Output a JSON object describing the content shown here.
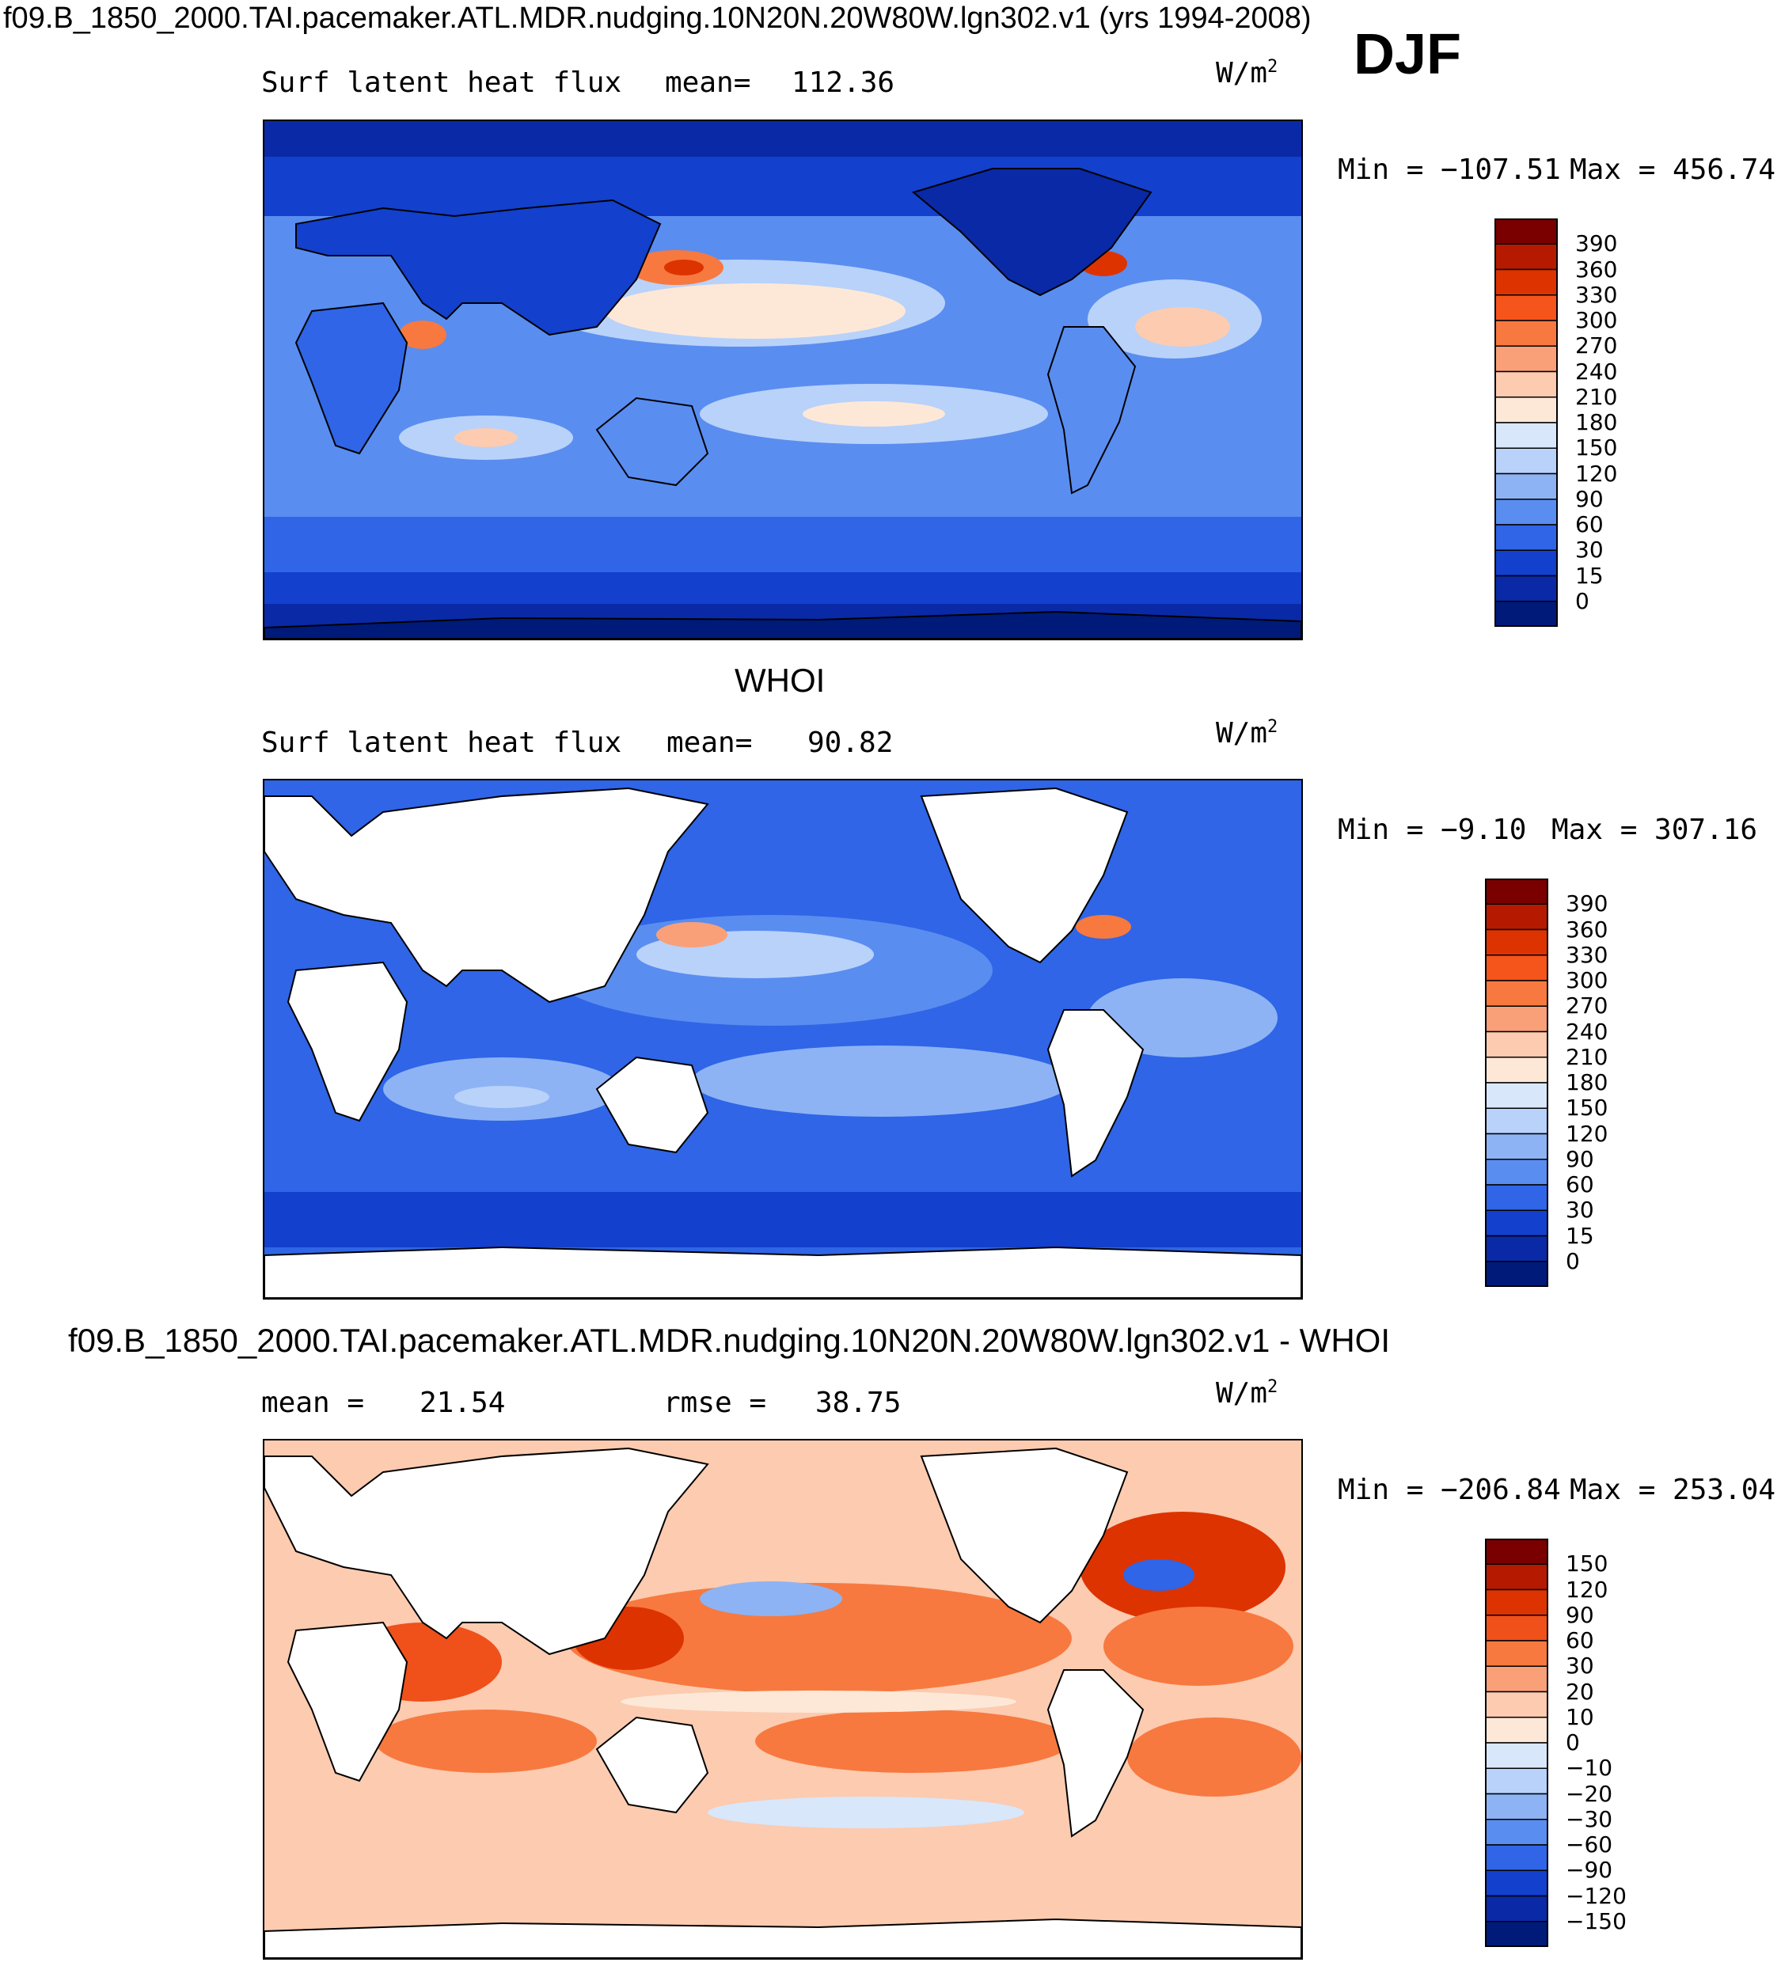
{
  "header": {
    "main_title": "f09.B_1850_2000.TAI.pacemaker.ATL.MDR.nudging.10N20N.20W80W.lgn302.v1 (yrs 1994-2008)",
    "season": "DJF"
  },
  "units_base": "W/m",
  "units_exp": "2",
  "chart_data": [
    {
      "type": "heatmap",
      "title": "f09.B_1850_2000.TAI.pacemaker.ATL.MDR.nudging.10N20N.20W80W.lgn302.v1 (yrs 1994-2008)",
      "variable": "Surf latent heat flux",
      "mean_label": "mean=",
      "mean_value": "112.36",
      "units": "W/m2",
      "min_text": "Min = −107.51",
      "max_text": "Max = 456.74",
      "levels": [
        "390",
        "360",
        "330",
        "300",
        "270",
        "240",
        "210",
        "180",
        "150",
        "120",
        "90",
        "60",
        "30",
        "15",
        "0"
      ],
      "colors": [
        "#7a0000",
        "#b51a00",
        "#dd3300",
        "#f5541a",
        "#f7793f",
        "#f9a079",
        "#fccbb0",
        "#fde8d8",
        "#d8e7fa",
        "#b8d2fa",
        "#8db3f5",
        "#5a8df0",
        "#2f65e6",
        "#1340cc",
        "#0a29a6",
        "#001a7a"
      ]
    },
    {
      "type": "heatmap",
      "title": "WHOI",
      "variable": "Surf latent heat flux",
      "mean_label": "mean=",
      "mean_value": "90.82",
      "units": "W/m2",
      "min_text": "Min = −9.10",
      "max_text": "Max = 307.16",
      "levels": [
        "390",
        "360",
        "330",
        "300",
        "270",
        "240",
        "210",
        "180",
        "150",
        "120",
        "90",
        "60",
        "30",
        "15",
        "0"
      ],
      "colors": [
        "#7a0000",
        "#b51a00",
        "#dd3300",
        "#f5541a",
        "#f7793f",
        "#f9a079",
        "#fccbb0",
        "#fde8d8",
        "#d8e7fa",
        "#b8d2fa",
        "#8db3f5",
        "#5a8df0",
        "#2f65e6",
        "#1340cc",
        "#0a29a6",
        "#001a7a"
      ]
    },
    {
      "type": "heatmap",
      "title": "f09.B_1850_2000.TAI.pacemaker.ATL.MDR.nudging.10N20N.20W80W.lgn302.v1 - WHOI",
      "mean_label": "mean =",
      "mean_value": "21.54",
      "rmse_label": "rmse =",
      "rmse_value": "38.75",
      "units": "W/m2",
      "min_text": "Min = −206.84",
      "max_text": "Max = 253.04",
      "levels": [
        "150",
        "120",
        "90",
        "60",
        "30",
        "20",
        "10",
        "0",
        "−10",
        "−20",
        "−30",
        "−60",
        "−90",
        "−120",
        "−150"
      ],
      "colors": [
        "#7a0000",
        "#b51a00",
        "#dd3300",
        "#f0501a",
        "#f7793f",
        "#f9a079",
        "#fccbb0",
        "#fde8d8",
        "#d8e7fa",
        "#b8d2fa",
        "#8db3f5",
        "#5a8df0",
        "#2f65e6",
        "#1340cc",
        "#0a29a6",
        "#001a7a"
      ]
    }
  ]
}
